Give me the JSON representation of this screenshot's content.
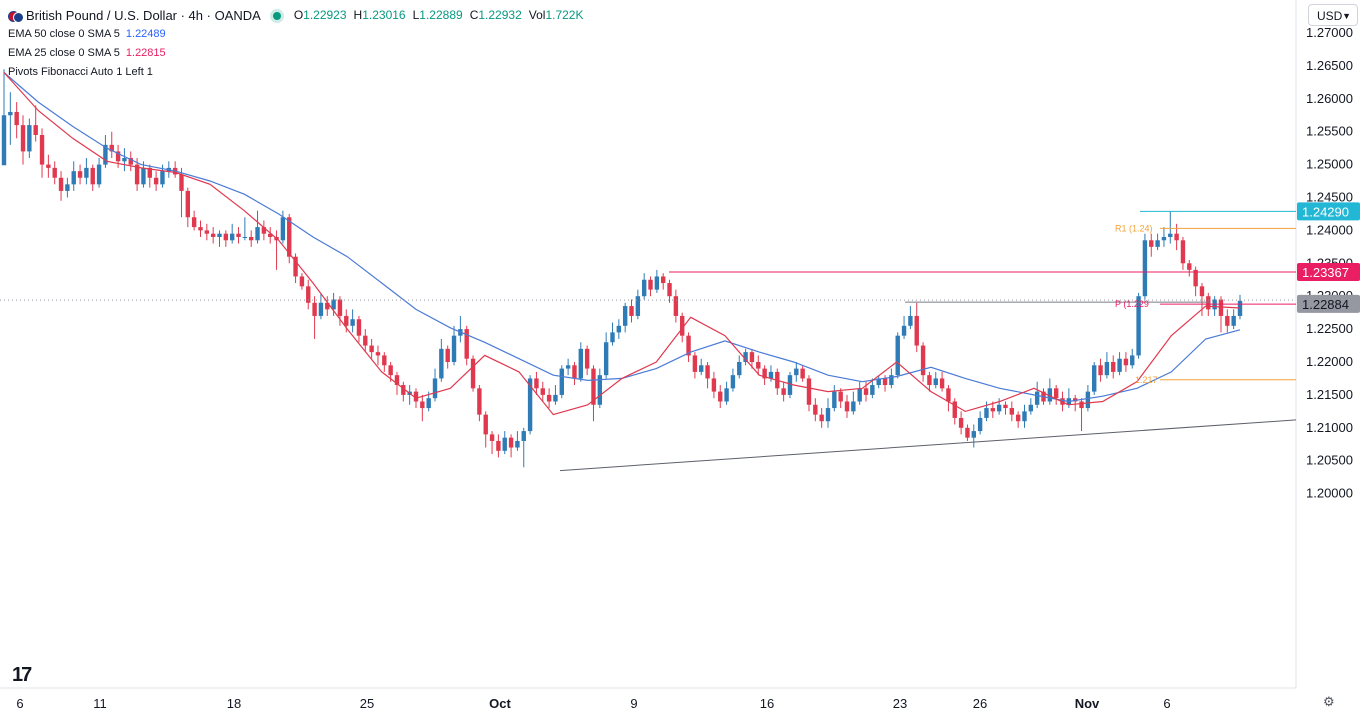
{
  "header": {
    "symbol_title": "British Pound / U.S. Dollar · 4h · OANDA",
    "ohlc": [
      {
        "k": "O",
        "v": "1.22923"
      },
      {
        "k": "H",
        "v": "1.23016"
      },
      {
        "k": "L",
        "v": "1.22889"
      },
      {
        "k": "C",
        "v": "1.22932"
      },
      {
        "k": "Vol",
        "v": "1.722K"
      }
    ],
    "indicators": [
      {
        "name": "EMA 50 close 0 SMA 5",
        "value": "1.22489"
      },
      {
        "name": "EMA 25 close 0 SMA 5",
        "value": "1.22815"
      },
      {
        "name": "Pivots Fibonacci Auto 1 Left 1",
        "value": ""
      }
    ],
    "currency": "USD"
  },
  "colors": {
    "bull": "#2e7bb6",
    "bear": "#e0394f",
    "ema50": "#4a7bd6",
    "ema25": "#e0394f",
    "pivot": "#f2a33a",
    "resistance": "#e91e63",
    "high_line": "#22b7d4",
    "last_price": "#9598a1",
    "trendline": "#5d606b"
  },
  "chart_data": {
    "type": "candlestick",
    "symbol": "GBPUSD",
    "timeframe": "4h",
    "ylim": [
      1.1975,
      1.2725
    ],
    "y_ticks": [
      "1.27000",
      "1.26500",
      "1.26000",
      "1.25500",
      "1.25000",
      "1.24500",
      "1.24000",
      "1.23500",
      "1.23000",
      "1.22500",
      "1.22000",
      "1.21500",
      "1.21000",
      "1.20500",
      "1.20000"
    ],
    "x_ticks": [
      "6",
      "11",
      "18",
      "25",
      "Oct",
      "9",
      "16",
      "23",
      "26",
      "Nov",
      "6"
    ],
    "price_labels": [
      {
        "value": 1.2429,
        "text": "1.24290",
        "kind": "high"
      },
      {
        "value": 1.23367,
        "text": "1.23367",
        "kind": "resistance"
      },
      {
        "value": 1.22884,
        "text": "1.22884",
        "kind": "last"
      }
    ],
    "pivot_labels": [
      {
        "text": "R1 (1.24)",
        "value": 1.2403
      },
      {
        "text": "P (1.229",
        "value": 1.2288
      },
      {
        "text": "1.217",
        "value": 1.2173
      }
    ],
    "candles": [
      [
        1.2499,
        1.2575,
        1.2645,
        1.254
      ],
      [
        1.2575,
        1.258,
        1.261,
        1.253
      ],
      [
        1.258,
        1.256,
        1.2595,
        1.254
      ],
      [
        1.256,
        1.252,
        1.2575,
        1.25
      ],
      [
        1.252,
        1.256,
        1.257,
        1.251
      ],
      [
        1.256,
        1.2545,
        1.259,
        1.2535
      ],
      [
        1.2545,
        1.25,
        1.2555,
        1.248
      ],
      [
        1.25,
        1.2495,
        1.2515,
        1.248
      ],
      [
        1.2495,
        1.248,
        1.2505,
        1.247
      ],
      [
        1.248,
        1.246,
        1.249,
        1.2445
      ],
      [
        1.246,
        1.247,
        1.248,
        1.245
      ],
      [
        1.247,
        1.249,
        1.2505,
        1.246
      ],
      [
        1.249,
        1.248,
        1.25,
        1.247
      ],
      [
        1.248,
        1.2495,
        1.251,
        1.247
      ],
      [
        1.2495,
        1.247,
        1.25,
        1.246
      ],
      [
        1.247,
        1.25,
        1.251,
        1.2465
      ],
      [
        1.25,
        1.253,
        1.2545,
        1.2495
      ],
      [
        1.253,
        1.252,
        1.255,
        1.251
      ],
      [
        1.252,
        1.2505,
        1.253,
        1.2495
      ],
      [
        1.2505,
        1.251,
        1.2525,
        1.249
      ],
      [
        1.251,
        1.25,
        1.252,
        1.249
      ],
      [
        1.25,
        1.247,
        1.251,
        1.246
      ],
      [
        1.247,
        1.2495,
        1.2505,
        1.2465
      ],
      [
        1.2495,
        1.248,
        1.25,
        1.2465
      ],
      [
        1.248,
        1.247,
        1.249,
        1.246
      ],
      [
        1.247,
        1.249,
        1.25,
        1.2465
      ],
      [
        1.249,
        1.2495,
        1.2505,
        1.248
      ],
      [
        1.2495,
        1.2485,
        1.2505,
        1.248
      ],
      [
        1.2485,
        1.246,
        1.2495,
        1.242
      ],
      [
        1.246,
        1.242,
        1.2465,
        1.2405
      ],
      [
        1.242,
        1.2405,
        1.243,
        1.24
      ],
      [
        1.2405,
        1.24,
        1.2415,
        1.239
      ],
      [
        1.24,
        1.2395,
        1.241,
        1.2385
      ],
      [
        1.2395,
        1.239,
        1.2405,
        1.238
      ],
      [
        1.239,
        1.2395,
        1.24,
        1.2375
      ],
      [
        1.2395,
        1.2385,
        1.24,
        1.2375
      ],
      [
        1.2385,
        1.2395,
        1.241,
        1.238
      ],
      [
        1.2395,
        1.239,
        1.2405,
        1.238
      ],
      [
        1.239,
        1.239,
        1.242,
        1.2385
      ],
      [
        1.239,
        1.2385,
        1.24,
        1.2375
      ],
      [
        1.2385,
        1.2405,
        1.243,
        1.238
      ],
      [
        1.2405,
        1.2395,
        1.2415,
        1.2385
      ],
      [
        1.2395,
        1.239,
        1.2405,
        1.238
      ],
      [
        1.239,
        1.2385,
        1.24,
        1.234
      ],
      [
        1.2385,
        1.242,
        1.243,
        1.238
      ],
      [
        1.242,
        1.236,
        1.2425,
        1.235
      ],
      [
        1.236,
        1.233,
        1.2365,
        1.232
      ],
      [
        1.233,
        1.2315,
        1.2335,
        1.231
      ],
      [
        1.2315,
        1.229,
        1.2325,
        1.228
      ],
      [
        1.229,
        1.227,
        1.23,
        1.2235
      ],
      [
        1.227,
        1.229,
        1.2305,
        1.2265
      ],
      [
        1.229,
        1.228,
        1.23,
        1.227
      ],
      [
        1.228,
        1.2295,
        1.2305,
        1.227
      ],
      [
        1.2295,
        1.227,
        1.23,
        1.2255
      ],
      [
        1.227,
        1.2255,
        1.228,
        1.2245
      ],
      [
        1.2255,
        1.2265,
        1.228,
        1.2245
      ],
      [
        1.2265,
        1.224,
        1.227,
        1.223
      ],
      [
        1.224,
        1.2225,
        1.225,
        1.2215
      ],
      [
        1.2225,
        1.2215,
        1.2235,
        1.2205
      ],
      [
        1.2215,
        1.221,
        1.2225,
        1.2195
      ],
      [
        1.221,
        1.2195,
        1.2215,
        1.2185
      ],
      [
        1.2195,
        1.218,
        1.22,
        1.217
      ],
      [
        1.218,
        1.2165,
        1.2185,
        1.215
      ],
      [
        1.2165,
        1.215,
        1.217,
        1.214
      ],
      [
        1.215,
        1.2155,
        1.2165,
        1.2135
      ],
      [
        1.2155,
        1.214,
        1.216,
        1.213
      ],
      [
        1.214,
        1.213,
        1.215,
        1.211
      ],
      [
        1.213,
        1.2145,
        1.2155,
        1.2125
      ],
      [
        1.2145,
        1.2175,
        1.219,
        1.214
      ],
      [
        1.2175,
        1.222,
        1.2235,
        1.217
      ],
      [
        1.222,
        1.22,
        1.2225,
        1.219
      ],
      [
        1.22,
        1.224,
        1.2255,
        1.2195
      ],
      [
        1.224,
        1.225,
        1.227,
        1.223
      ],
      [
        1.225,
        1.2205,
        1.2255,
        1.2195
      ],
      [
        1.2205,
        1.216,
        1.221,
        1.2155
      ],
      [
        1.216,
        1.212,
        1.2165,
        1.211
      ],
      [
        1.212,
        1.209,
        1.2125,
        1.207
      ],
      [
        1.209,
        1.208,
        1.2095,
        1.206
      ],
      [
        1.208,
        1.2065,
        1.209,
        1.2055
      ],
      [
        1.2065,
        1.2085,
        1.2095,
        1.206
      ],
      [
        1.2085,
        1.207,
        1.209,
        1.2055
      ],
      [
        1.207,
        1.208,
        1.2095,
        1.2065
      ],
      [
        1.208,
        1.2095,
        1.21,
        1.204
      ],
      [
        1.2095,
        1.2175,
        1.218,
        1.209
      ],
      [
        1.2175,
        1.216,
        1.2185,
        1.215
      ],
      [
        1.216,
        1.215,
        1.217,
        1.214
      ],
      [
        1.215,
        1.214,
        1.216,
        1.213
      ],
      [
        1.214,
        1.215,
        1.2165,
        1.2135
      ],
      [
        1.215,
        1.219,
        1.2195,
        1.2145
      ],
      [
        1.219,
        1.2195,
        1.2205,
        1.218
      ],
      [
        1.2195,
        1.2175,
        1.22,
        1.2165
      ],
      [
        1.2175,
        1.222,
        1.223,
        1.217
      ],
      [
        1.222,
        1.219,
        1.2225,
        1.218
      ],
      [
        1.219,
        1.2135,
        1.2195,
        1.211
      ],
      [
        1.2135,
        1.218,
        1.219,
        1.213
      ],
      [
        1.218,
        1.223,
        1.2245,
        1.2175
      ],
      [
        1.223,
        1.2245,
        1.226,
        1.2225
      ],
      [
        1.2245,
        1.2255,
        1.2265,
        1.2235
      ],
      [
        1.2255,
        1.2285,
        1.229,
        1.2245
      ],
      [
        1.2285,
        1.227,
        1.2295,
        1.226
      ],
      [
        1.227,
        1.23,
        1.231,
        1.2265
      ],
      [
        1.23,
        1.2325,
        1.2335,
        1.2295
      ],
      [
        1.2325,
        1.231,
        1.233,
        1.23
      ],
      [
        1.231,
        1.233,
        1.234,
        1.2305
      ],
      [
        1.233,
        1.232,
        1.2335,
        1.231
      ],
      [
        1.232,
        1.23,
        1.2325,
        1.229
      ],
      [
        1.23,
        1.227,
        1.231,
        1.226
      ],
      [
        1.227,
        1.224,
        1.2275,
        1.223
      ],
      [
        1.224,
        1.221,
        1.2245,
        1.22
      ],
      [
        1.221,
        1.2185,
        1.2215,
        1.2175
      ],
      [
        1.2185,
        1.2195,
        1.2205,
        1.218
      ],
      [
        1.2195,
        1.2175,
        1.22,
        1.216
      ],
      [
        1.2175,
        1.2155,
        1.2185,
        1.2145
      ],
      [
        1.2155,
        1.214,
        1.2165,
        1.213
      ],
      [
        1.214,
        1.216,
        1.217,
        1.2135
      ],
      [
        1.216,
        1.218,
        1.219,
        1.2155
      ],
      [
        1.218,
        1.22,
        1.221,
        1.2175
      ],
      [
        1.22,
        1.2215,
        1.222,
        1.2195
      ],
      [
        1.2215,
        1.22,
        1.222,
        1.219
      ],
      [
        1.22,
        1.219,
        1.221,
        1.218
      ],
      [
        1.219,
        1.2175,
        1.2195,
        1.2165
      ],
      [
        1.2175,
        1.2185,
        1.2195,
        1.217
      ],
      [
        1.2185,
        1.216,
        1.219,
        1.215
      ],
      [
        1.216,
        1.215,
        1.217,
        1.214
      ],
      [
        1.215,
        1.218,
        1.2185,
        1.2145
      ],
      [
        1.218,
        1.219,
        1.22,
        1.217
      ],
      [
        1.219,
        1.2175,
        1.2195,
        1.217
      ],
      [
        1.2175,
        1.2135,
        1.218,
        1.2125
      ],
      [
        1.2135,
        1.212,
        1.2145,
        1.211
      ],
      [
        1.212,
        1.211,
        1.213,
        1.21
      ],
      [
        1.211,
        1.213,
        1.2145,
        1.21
      ],
      [
        1.213,
        1.2155,
        1.2165,
        1.2125
      ],
      [
        1.2155,
        1.214,
        1.216,
        1.213
      ],
      [
        1.214,
        1.2125,
        1.215,
        1.2115
      ],
      [
        1.2125,
        1.214,
        1.2155,
        1.212
      ],
      [
        1.214,
        1.216,
        1.217,
        1.2135
      ],
      [
        1.216,
        1.215,
        1.217,
        1.214
      ],
      [
        1.215,
        1.2165,
        1.2175,
        1.2145
      ],
      [
        1.2165,
        1.2175,
        1.218,
        1.216
      ],
      [
        1.2175,
        1.2165,
        1.218,
        1.2155
      ],
      [
        1.2165,
        1.218,
        1.219,
        1.216
      ],
      [
        1.218,
        1.224,
        1.2245,
        1.2175
      ],
      [
        1.224,
        1.2255,
        1.227,
        1.2235
      ],
      [
        1.2255,
        1.227,
        1.2285,
        1.225
      ],
      [
        1.227,
        1.2225,
        1.229,
        1.2215
      ],
      [
        1.2225,
        1.218,
        1.223,
        1.217
      ],
      [
        1.218,
        1.2165,
        1.2185,
        1.2155
      ],
      [
        1.2165,
        1.2175,
        1.2185,
        1.216
      ],
      [
        1.2175,
        1.216,
        1.2185,
        1.2155
      ],
      [
        1.216,
        1.214,
        1.2165,
        1.2125
      ],
      [
        1.214,
        1.2115,
        1.2145,
        1.2105
      ],
      [
        1.2115,
        1.21,
        1.2125,
        1.209
      ],
      [
        1.21,
        1.2085,
        1.2105,
        1.208
      ],
      [
        1.2085,
        1.2095,
        1.2105,
        1.207
      ],
      [
        1.2095,
        1.2115,
        1.2125,
        1.209
      ],
      [
        1.2115,
        1.213,
        1.214,
        1.211
      ],
      [
        1.213,
        1.2125,
        1.214,
        1.2115
      ],
      [
        1.2125,
        1.2135,
        1.2145,
        1.212
      ],
      [
        1.2135,
        1.213,
        1.214,
        1.212
      ],
      [
        1.213,
        1.212,
        1.214,
        1.211
      ],
      [
        1.212,
        1.211,
        1.2125,
        1.21
      ],
      [
        1.211,
        1.2125,
        1.2135,
        1.21
      ],
      [
        1.2125,
        1.2135,
        1.2145,
        1.212
      ],
      [
        1.2135,
        1.2155,
        1.217,
        1.213
      ],
      [
        1.2155,
        1.214,
        1.216,
        1.2135
      ],
      [
        1.214,
        1.216,
        1.2175,
        1.2135
      ],
      [
        1.216,
        1.2145,
        1.2165,
        1.2135
      ],
      [
        1.2145,
        1.2135,
        1.2155,
        1.2125
      ],
      [
        1.2135,
        1.2145,
        1.216,
        1.213
      ],
      [
        1.2145,
        1.214,
        1.215,
        1.2125
      ],
      [
        1.214,
        1.213,
        1.2145,
        1.2095
      ],
      [
        1.213,
        1.2155,
        1.2165,
        1.2125
      ],
      [
        1.2155,
        1.2195,
        1.22,
        1.215
      ],
      [
        1.2195,
        1.218,
        1.2205,
        1.217
      ],
      [
        1.218,
        1.22,
        1.2215,
        1.2175
      ],
      [
        1.22,
        1.2185,
        1.221,
        1.2175
      ],
      [
        1.2185,
        1.2205,
        1.2215,
        1.218
      ],
      [
        1.2205,
        1.2195,
        1.2215,
        1.2185
      ],
      [
        1.2195,
        1.221,
        1.222,
        1.219
      ],
      [
        1.221,
        1.23,
        1.2305,
        1.2205
      ],
      [
        1.23,
        1.2385,
        1.2395,
        1.2295
      ],
      [
        1.2385,
        1.2375,
        1.2395,
        1.236
      ],
      [
        1.2375,
        1.2385,
        1.2395,
        1.237
      ],
      [
        1.2385,
        1.239,
        1.2405,
        1.2375
      ],
      [
        1.239,
        1.2395,
        1.2429,
        1.238
      ],
      [
        1.2395,
        1.2385,
        1.241,
        1.237
      ],
      [
        1.2385,
        1.235,
        1.239,
        1.234
      ],
      [
        1.235,
        1.234,
        1.2355,
        1.233
      ],
      [
        1.234,
        1.2315,
        1.2345,
        1.23
      ],
      [
        1.2315,
        1.23,
        1.232,
        1.227
      ],
      [
        1.23,
        1.228,
        1.2305,
        1.227
      ],
      [
        1.228,
        1.2295,
        1.23,
        1.227
      ],
      [
        1.2295,
        1.227,
        1.23,
        1.2245
      ],
      [
        1.227,
        1.2255,
        1.228,
        1.2245
      ],
      [
        1.2255,
        1.227,
        1.228,
        1.225
      ],
      [
        1.227,
        1.2293,
        1.2302,
        1.2265
      ]
    ],
    "ema50": [
      1.264,
      1.2595,
      1.2558,
      1.2525,
      1.25,
      1.249,
      1.2475,
      1.2455,
      1.2425,
      1.239,
      1.236,
      1.232,
      1.228,
      1.2252,
      1.223,
      1.2205,
      1.218,
      1.2172,
      1.2175,
      1.219,
      1.2215,
      1.2232,
      1.2215,
      1.22,
      1.218,
      1.217,
      1.2178,
      1.2192,
      1.2175,
      1.216,
      1.215,
      1.214,
      1.2148,
      1.216,
      1.2185,
      1.2235,
      1.2249
    ],
    "ema25": [
      1.264,
      1.2582,
      1.254,
      1.2505,
      1.2495,
      1.2488,
      1.247,
      1.243,
      1.2385,
      1.232,
      1.225,
      1.2185,
      1.2145,
      1.216,
      1.221,
      1.2185,
      1.212,
      1.2135,
      1.2175,
      1.22,
      1.2268,
      1.224,
      1.218,
      1.2165,
      1.2155,
      1.216,
      1.22,
      1.2155,
      1.2125,
      1.214,
      1.216,
      1.2135,
      1.214,
      1.217,
      1.224,
      1.2285,
      1.2282
    ],
    "high_line_value": 1.2429,
    "resistance_value": 1.23367,
    "last_price_value": 1.22884,
    "pivot_P_value": 1.2288,
    "pivot_R1_value": 1.2403,
    "pivot_S_value": 1.2173,
    "trendline": [
      [
        1.2035
      ],
      [
        1.2112
      ]
    ],
    "dotted_price": 1.2294
  }
}
